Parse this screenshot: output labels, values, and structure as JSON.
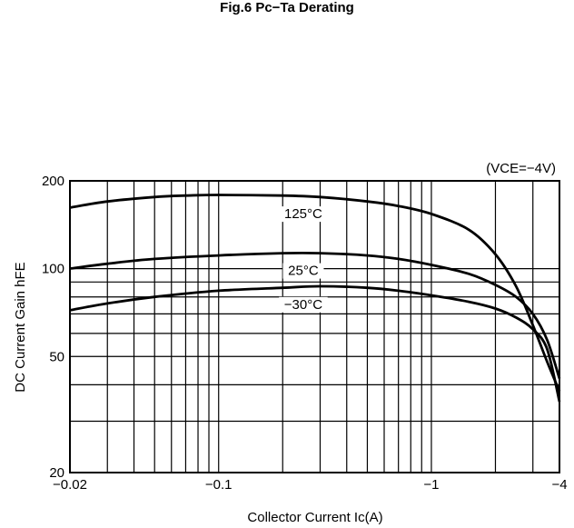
{
  "figure": {
    "title": "Fig.6 Pc−Ta Derating"
  },
  "chart_data": {
    "type": "line",
    "title": "",
    "condition": "(VCE=−4V)",
    "xlabel": "Collector Current Ic(A)",
    "ylabel": "DC Current Gain hFE",
    "x_scale": "log",
    "y_scale": "log",
    "xlim": [
      0.02,
      4
    ],
    "ylim": [
      20,
      200
    ],
    "x_ticks": [
      {
        "value": 0.02,
        "label": "−0.02"
      },
      {
        "value": 0.1,
        "label": "−0.1"
      },
      {
        "value": 1,
        "label": "−1"
      },
      {
        "value": 4,
        "label": "−4"
      }
    ],
    "y_ticks": [
      {
        "value": 20,
        "label": "20"
      },
      {
        "value": 50,
        "label": "50"
      },
      {
        "value": 100,
        "label": "100"
      },
      {
        "value": 200,
        "label": "200"
      }
    ],
    "x_grid": [
      0.02,
      0.03,
      0.04,
      0.05,
      0.06,
      0.07,
      0.08,
      0.09,
      0.1,
      0.2,
      0.3,
      0.4,
      0.5,
      0.6,
      0.7,
      0.8,
      0.9,
      1,
      2,
      3,
      4
    ],
    "y_grid": [
      20,
      30,
      40,
      50,
      60,
      70,
      80,
      90,
      100,
      200
    ],
    "grid": true,
    "series": [
      {
        "name": "125°C",
        "x": [
          0.02,
          0.03,
          0.05,
          0.07,
          0.1,
          0.2,
          0.3,
          0.5,
          0.7,
          1.0,
          1.5,
          2.0,
          2.5,
          3.0,
          3.5,
          4.0
        ],
        "y": [
          162,
          170,
          176,
          178,
          179,
          178,
          176,
          170,
          164,
          154,
          136,
          112,
          87,
          64,
          48,
          38
        ]
      },
      {
        "name": "25°C",
        "x": [
          0.02,
          0.03,
          0.05,
          0.1,
          0.2,
          0.3,
          0.5,
          0.7,
          1.0,
          1.5,
          2.0,
          2.5,
          3.0,
          3.5,
          4.0
        ],
        "y": [
          100,
          104,
          108,
          111,
          113,
          113,
          111,
          108,
          103,
          96,
          88,
          80,
          70,
          57,
          42
        ]
      },
      {
        "name": "−30°C",
        "x": [
          0.02,
          0.03,
          0.05,
          0.1,
          0.2,
          0.3,
          0.5,
          0.7,
          1.0,
          1.5,
          2.0,
          2.5,
          3.0,
          3.5,
          4.0
        ],
        "y": [
          72,
          76,
          80,
          84,
          86,
          87,
          86,
          84,
          81,
          77,
          73,
          68,
          62,
          53,
          35
        ]
      }
    ]
  }
}
